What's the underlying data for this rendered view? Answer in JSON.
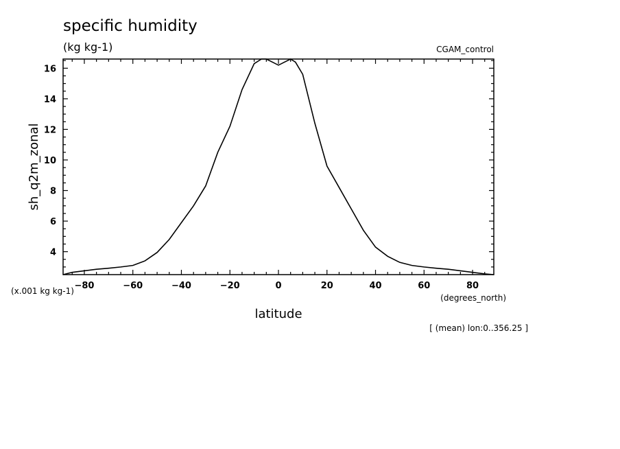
{
  "chart_data": {
    "type": "line",
    "title": "specific humidity",
    "units": "(kg kg-1)",
    "dataset": "CGAM_control",
    "xlabel": "latitude",
    "x_units": "(degrees_north)",
    "ylabel": "sh_q2m_zonal",
    "y_scale_note": "(x.001 kg kg-1)",
    "footnote": "[ (mean) lon:0..356.25 ]",
    "xlim": [
      -88.75,
      88.75
    ],
    "ylim": [
      2.5,
      16.6
    ],
    "x_ticks": [
      -80,
      -60,
      -40,
      -20,
      0,
      20,
      40,
      60,
      80
    ],
    "y_ticks": [
      4,
      6,
      8,
      10,
      12,
      14,
      16
    ],
    "grid": false,
    "series": [
      {
        "x": [
          -88.75,
          -85,
          -80,
          -75,
          -70,
          -65,
          -60,
          -55,
          -50,
          -45,
          -40,
          -35,
          -30,
          -25,
          -20,
          -15,
          -10,
          -7,
          -5,
          -2.5,
          0,
          2.5,
          5,
          7,
          10,
          15,
          20,
          25,
          30,
          35,
          40,
          45,
          50,
          55,
          60,
          65,
          70,
          75,
          80,
          85,
          88.75
        ],
        "y": [
          2.5,
          2.65,
          2.75,
          2.85,
          2.92,
          3.0,
          3.1,
          3.4,
          3.95,
          4.8,
          5.9,
          7.0,
          8.3,
          10.5,
          12.2,
          14.6,
          16.3,
          16.6,
          16.6,
          16.4,
          16.2,
          16.4,
          16.6,
          16.4,
          15.6,
          12.4,
          9.6,
          8.2,
          6.8,
          5.4,
          4.3,
          3.7,
          3.3,
          3.1,
          3.0,
          2.92,
          2.85,
          2.75,
          2.65,
          2.55,
          2.5
        ]
      }
    ]
  }
}
